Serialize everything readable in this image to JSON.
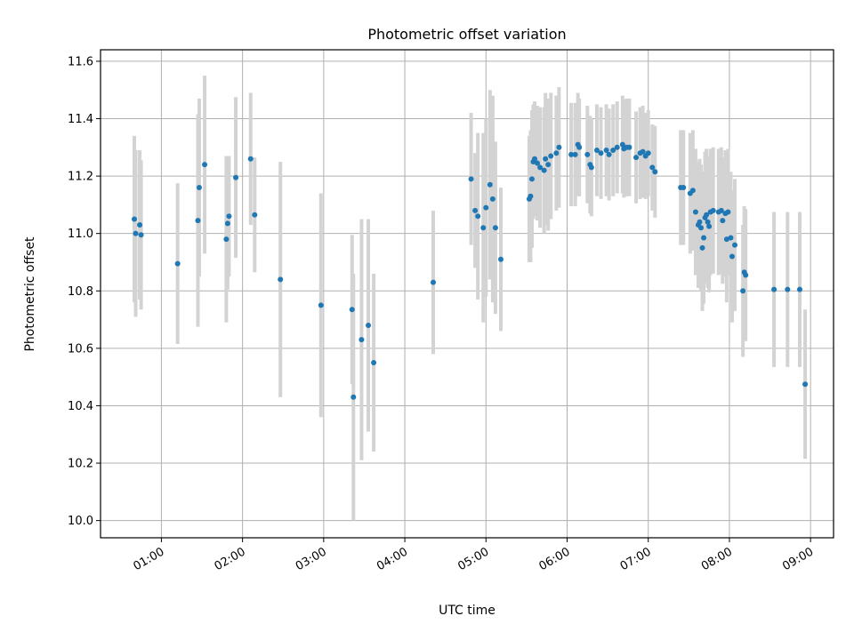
{
  "chart_data": {
    "type": "scatter",
    "title": "Photometric offset variation",
    "xlabel": "UTC time",
    "ylabel": "Photometric offset",
    "x_unit": "hours UTC",
    "xlim": [
      "00:15",
      "09:17"
    ],
    "ylim": [
      9.94,
      11.64
    ],
    "x_ticks": [
      "01:00",
      "02:00",
      "03:00",
      "04:00",
      "05:00",
      "06:00",
      "07:00",
      "08:00",
      "09:00"
    ],
    "y_ticks": [
      "10.0",
      "10.2",
      "10.4",
      "10.6",
      "10.8",
      "11.0",
      "11.2",
      "11.4",
      "11.6"
    ],
    "grid": true,
    "colors": {
      "point": "#1f77b4",
      "errorbar": "#d3d3d3",
      "grid": "#b0b0b0"
    },
    "series": [
      {
        "x": [
          "00:40",
          "00:41",
          "00:44",
          "00:45",
          "01:12",
          "01:27",
          "01:28",
          "01:32",
          "01:48",
          "01:49",
          "01:50",
          "01:55",
          "02:06",
          "02:09",
          "02:28",
          "02:58",
          "03:21",
          "03:22",
          "03:28",
          "03:33",
          "03:37",
          "04:21",
          "04:49",
          "04:52",
          "04:54",
          "04:58",
          "05:00",
          "05:03",
          "05:05",
          "05:07",
          "05:11",
          "05:32",
          "05:33",
          "05:34",
          "05:35",
          "05:36",
          "05:38",
          "05:40",
          "05:43",
          "05:44",
          "05:46",
          "05:48",
          "05:52",
          "05:54",
          "06:03",
          "06:06",
          "06:08",
          "06:09",
          "06:15",
          "06:17",
          "06:18",
          "06:22",
          "06:25",
          "06:29",
          "06:31",
          "06:34",
          "06:37",
          "06:41",
          "06:42",
          "06:44",
          "06:46",
          "06:51",
          "06:54",
          "06:56",
          "06:58",
          "07:00",
          "07:03",
          "07:05",
          "07:24",
          "07:26",
          "07:31",
          "07:33",
          "07:35",
          "07:37",
          "07:38",
          "07:39",
          "07:40",
          "07:41",
          "07:42",
          "07:43",
          "07:44",
          "07:45",
          "07:46",
          "07:48",
          "07:52",
          "07:54",
          "07:55",
          "07:57",
          "07:58",
          "07:59",
          "08:01",
          "08:02",
          "08:04",
          "08:10",
          "08:11",
          "08:12",
          "08:33",
          "08:43",
          "08:52",
          "08:56"
        ],
        "y": [
          11.05,
          11.0,
          11.03,
          10.995,
          10.895,
          11.045,
          11.16,
          11.24,
          10.98,
          11.035,
          11.06,
          11.195,
          11.26,
          11.065,
          10.84,
          10.75,
          10.735,
          10.43,
          10.63,
          10.68,
          10.55,
          10.83,
          11.19,
          11.08,
          11.06,
          11.02,
          11.09,
          11.17,
          11.12,
          11.02,
          10.91,
          11.12,
          11.13,
          11.19,
          11.25,
          11.26,
          11.245,
          11.23,
          11.22,
          11.26,
          11.24,
          11.27,
          11.28,
          11.3,
          11.275,
          11.275,
          11.31,
          11.3,
          11.275,
          11.24,
          11.23,
          11.29,
          11.28,
          11.29,
          11.275,
          11.29,
          11.3,
          11.31,
          11.295,
          11.3,
          11.3,
          11.265,
          11.28,
          11.285,
          11.27,
          11.28,
          11.23,
          11.215,
          11.16,
          11.16,
          11.14,
          11.15,
          11.075,
          11.03,
          11.04,
          11.02,
          10.95,
          10.985,
          11.055,
          11.065,
          11.04,
          11.025,
          11.075,
          11.08,
          11.075,
          11.08,
          11.045,
          11.07,
          10.98,
          11.075,
          10.985,
          10.92,
          10.96,
          10.8,
          10.865,
          10.855,
          10.805,
          10.805,
          10.805,
          10.475
        ],
        "yerr": [
          0.29,
          0.29,
          0.26,
          0.26,
          0.28,
          0.37,
          0.31,
          0.31,
          0.29,
          0.23,
          0.21,
          0.28,
          0.23,
          0.2,
          0.41,
          0.39,
          0.26,
          0.43,
          0.42,
          0.37,
          0.31,
          0.25,
          0.23,
          0.2,
          0.29,
          0.33,
          0.31,
          0.33,
          0.36,
          0.3,
          0.25,
          0.22,
          0.23,
          0.24,
          0.2,
          0.2,
          0.2,
          0.21,
          0.22,
          0.23,
          0.23,
          0.22,
          0.2,
          0.21,
          0.18,
          0.18,
          0.18,
          0.17,
          0.17,
          0.17,
          0.17,
          0.16,
          0.16,
          0.16,
          0.16,
          0.16,
          0.16,
          0.17,
          0.17,
          0.17,
          0.17,
          0.16,
          0.16,
          0.16,
          0.15,
          0.15,
          0.15,
          0.16,
          0.2,
          0.2,
          0.21,
          0.21,
          0.22,
          0.22,
          0.22,
          0.22,
          0.22,
          0.23,
          0.23,
          0.23,
          0.23,
          0.23,
          0.22,
          0.22,
          0.22,
          0.22,
          0.22,
          0.22,
          0.22,
          0.22,
          0.23,
          0.23,
          0.23,
          0.23,
          0.23,
          0.23,
          0.27,
          0.27,
          0.27,
          0.26
        ]
      }
    ]
  }
}
